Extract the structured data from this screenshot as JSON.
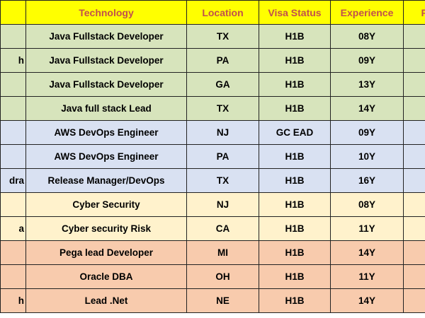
{
  "header": {
    "name": "",
    "technology": "Technology",
    "location": "Location",
    "visa_status": "Visa Status",
    "experience": "Experience",
    "rate": "R"
  },
  "rows": [
    {
      "name": "",
      "technology": "Java Fullstack Developer",
      "location": "TX",
      "visa": "H1B",
      "experience": "08Y",
      "rate": "",
      "color": "#d7e4bc"
    },
    {
      "name": "h",
      "technology": "Java Fullstack Developer",
      "location": "PA",
      "visa": "H1B",
      "experience": "09Y",
      "rate": "",
      "color": "#d7e4bc"
    },
    {
      "name": "",
      "technology": "Java Fullstack Developer",
      "location": "GA",
      "visa": "H1B",
      "experience": "13Y",
      "rate": "",
      "color": "#d7e4bc"
    },
    {
      "name": "",
      "technology": "Java full stack Lead",
      "location": "TX",
      "visa": "H1B",
      "experience": "14Y",
      "rate": "",
      "color": "#d7e4bc"
    },
    {
      "name": "",
      "technology": "AWS DevOps Engineer",
      "location": "NJ",
      "visa": "GC EAD",
      "experience": "09Y",
      "rate": "",
      "color": "#d9e1f2"
    },
    {
      "name": "",
      "technology": "AWS DevOps Engineer",
      "location": "PA",
      "visa": "H1B",
      "experience": "10Y",
      "rate": "",
      "color": "#d9e1f2"
    },
    {
      "name": "dra",
      "technology": "Release Manager/DevOps",
      "location": "TX",
      "visa": "H1B",
      "experience": "16Y",
      "rate": "",
      "color": "#d9e1f2"
    },
    {
      "name": "",
      "technology": "Cyber Security",
      "location": "NJ",
      "visa": "H1B",
      "experience": "08Y",
      "rate": "",
      "color": "#fff2cc"
    },
    {
      "name": "a",
      "technology": "Cyber security Risk",
      "location": "CA",
      "visa": "H1B",
      "experience": "11Y",
      "rate": "",
      "color": "#fff2cc"
    },
    {
      "name": "",
      "technology": "Pega lead Developer",
      "location": "MI",
      "visa": "H1B",
      "experience": "14Y",
      "rate": "",
      "color": "#f8cbad"
    },
    {
      "name": "",
      "technology": "Oracle DBA",
      "location": "OH",
      "visa": "H1B",
      "experience": "11Y",
      "rate": "",
      "color": "#f8cbad"
    },
    {
      "name": "h",
      "technology": "Lead .Net",
      "location": "NE",
      "visa": "H1B",
      "experience": "14Y",
      "rate": "",
      "color": "#f8cbad"
    }
  ]
}
